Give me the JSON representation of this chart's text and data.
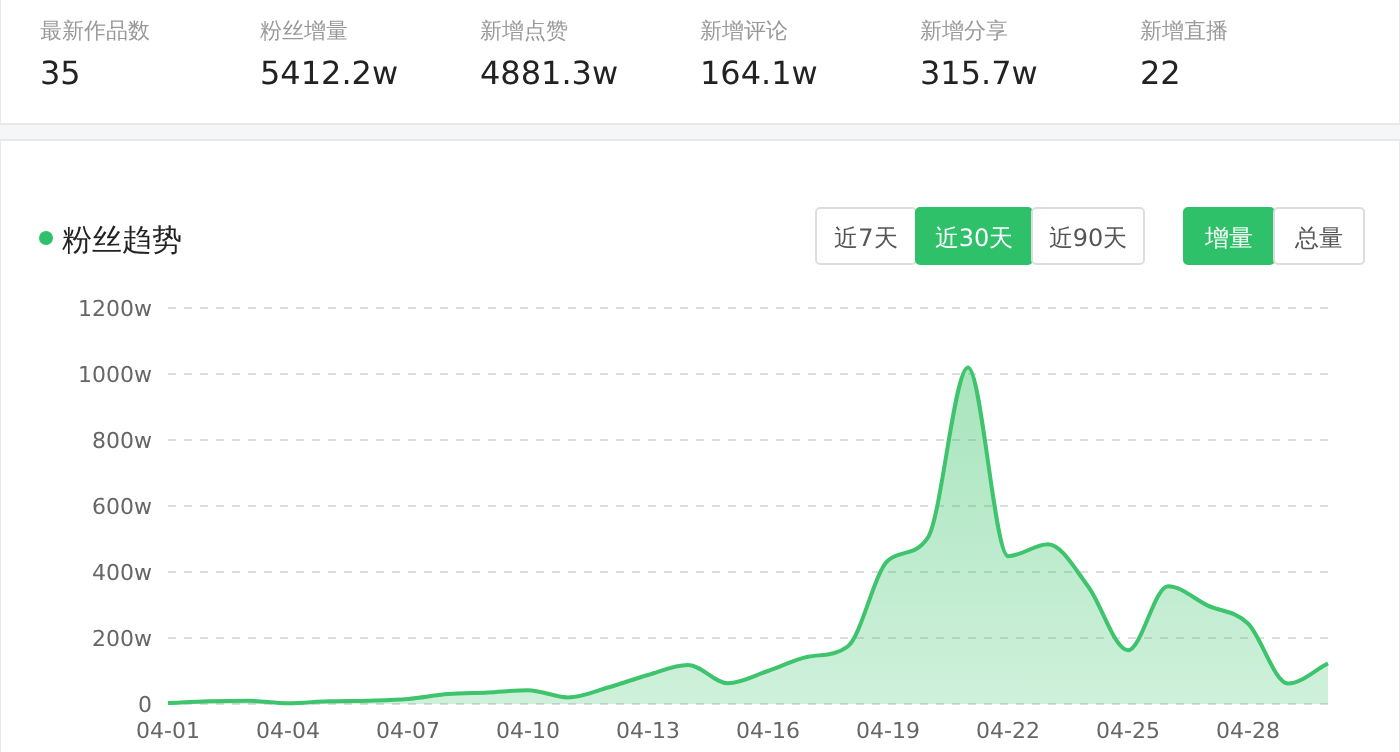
{
  "chart_data": [
    {
      "type": "other",
      "annotations": [
        "最新作品数",
        "35",
        "粉丝增量",
        "5412.2w",
        "新增点赞",
        "4881.3w",
        "新增评论",
        "164.1w",
        "新增分享",
        "315.7w",
        "新增直播",
        "22"
      ]
    },
    {
      "type": "area",
      "title": "粉丝趋势",
      "annotations": [
        "近7天",
        "近30天",
        "近90天",
        "增量",
        "总量"
      ],
      "categories": [
        "04-01",
        null,
        null,
        "04-04",
        null,
        null,
        "04-07",
        null,
        null,
        "04-10",
        null,
        null,
        "04-13",
        null,
        null,
        "04-16",
        null,
        null,
        "04-19",
        null,
        null,
        "04-22",
        null,
        null,
        "04-25",
        null,
        null,
        "04-28",
        null,
        null
      ],
      "series": [
        {
          "color": "#3ec46d",
          "values": [
            3,
            8,
            10,
            2,
            8,
            10,
            15,
            30,
            35,
            42,
            20,
            50,
            88,
            118,
            63,
            100,
            143,
            175,
            435,
            505,
            1020,
            448,
            484,
            357,
            163,
            357,
            298,
            244,
            62,
            123
          ]
        }
      ],
      "ylim": [
        0,
        1200
      ],
      "yticks": [
        0,
        {
          "value": 200,
          "label": "200w"
        },
        {
          "value": 400,
          "label": "400w"
        },
        {
          "value": 600,
          "label": "600w"
        },
        {
          "value": 800,
          "label": "800w"
        },
        {
          "value": 1000,
          "label": "1000w"
        },
        {
          "value": 1200,
          "label": "1200w"
        }
      ],
      "grid": "y",
      "marker": "none",
      "line_style": "solid"
    }
  ]
}
